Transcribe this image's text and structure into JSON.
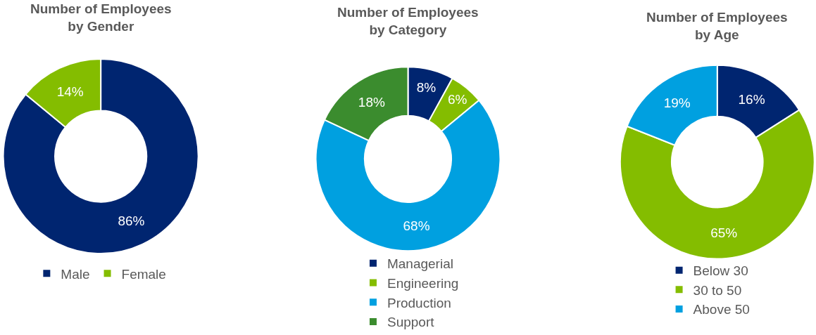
{
  "chart_data": [
    {
      "type": "donut",
      "title": "Number of Employees\nby Gender",
      "categories": [
        "Male",
        "Female"
      ],
      "values": [
        86,
        14
      ],
      "colors": [
        "#002570",
        "#84bd00"
      ],
      "value_labels": [
        "86%",
        "14%"
      ],
      "legend": "bottom"
    },
    {
      "type": "donut",
      "title": "Number of Employees\nby Category",
      "categories": [
        "Managerial",
        "Engineering",
        "Production",
        "Support"
      ],
      "values": [
        8,
        6,
        68,
        18
      ],
      "colors": [
        "#002570",
        "#84bd00",
        "#00a0e0",
        "#3b8c2e"
      ],
      "value_labels": [
        "8%",
        "6%",
        "68%",
        "18%"
      ],
      "legend": "bottom"
    },
    {
      "type": "donut",
      "title": "Number of Employees\nby Age",
      "categories": [
        "Below 30",
        "30 to 50",
        "Above 50"
      ],
      "values": [
        16,
        65,
        19
      ],
      "colors": [
        "#002570",
        "#84bd00",
        "#00a0e0"
      ],
      "value_labels": [
        "16%",
        "65%",
        "19%"
      ],
      "legend": "bottom"
    }
  ]
}
